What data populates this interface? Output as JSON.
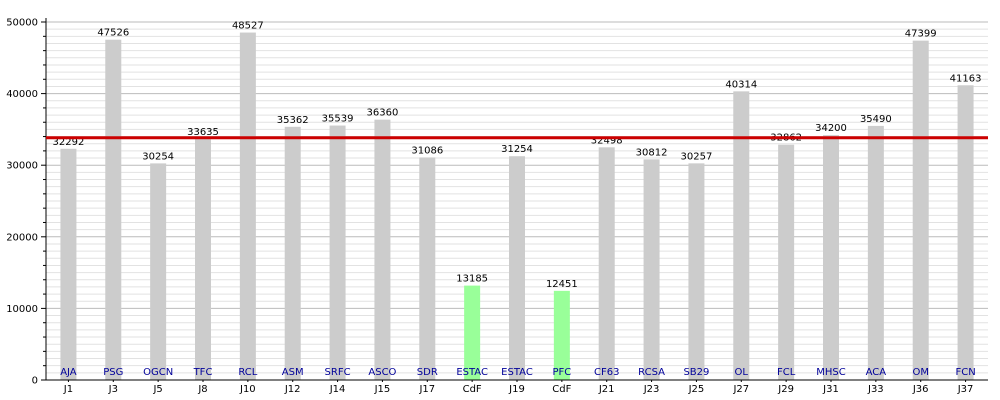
{
  "chart_data": {
    "type": "bar",
    "ylim": [
      0,
      50000
    ],
    "y_ticks": [
      0,
      10000,
      20000,
      30000,
      40000,
      50000
    ],
    "grid": true,
    "reference_line": 33830,
    "bar_color": "#cccccc",
    "highlight_color": "#99ff99",
    "reference_color": "#cc0000",
    "team_label_color": "#000099",
    "bars": [
      {
        "round": "J1",
        "team": "AJA",
        "value": 32292,
        "highlight": false
      },
      {
        "round": "J3",
        "team": "PSG",
        "value": 47526,
        "highlight": false
      },
      {
        "round": "J5",
        "team": "OGCN",
        "value": 30254,
        "highlight": false
      },
      {
        "round": "J8",
        "team": "TFC",
        "value": 33635,
        "highlight": false
      },
      {
        "round": "J10",
        "team": "RCL",
        "value": 48527,
        "highlight": false
      },
      {
        "round": "J12",
        "team": "ASM",
        "value": 35362,
        "highlight": false
      },
      {
        "round": "J14",
        "team": "SRFC",
        "value": 35539,
        "highlight": false
      },
      {
        "round": "J15",
        "team": "ASCO",
        "value": 36360,
        "highlight": false
      },
      {
        "round": "J17",
        "team": "SDR",
        "value": 31086,
        "highlight": false
      },
      {
        "round": "CdF",
        "team": "ESTAC",
        "value": 13185,
        "highlight": true
      },
      {
        "round": "J19",
        "team": "ESTAC",
        "value": 31254,
        "highlight": false
      },
      {
        "round": "CdF",
        "team": "PFC",
        "value": 12451,
        "highlight": true
      },
      {
        "round": "J21",
        "team": "CF63",
        "value": 32498,
        "highlight": false
      },
      {
        "round": "J23",
        "team": "RCSA",
        "value": 30812,
        "highlight": false
      },
      {
        "round": "J25",
        "team": "SB29",
        "value": 30257,
        "highlight": false
      },
      {
        "round": "J27",
        "team": "OL",
        "value": 40314,
        "highlight": false
      },
      {
        "round": "J29",
        "team": "FCL",
        "value": 32862,
        "highlight": false
      },
      {
        "round": "J31",
        "team": "MHSC",
        "value": 34200,
        "highlight": false
      },
      {
        "round": "J33",
        "team": "ACA",
        "value": 35490,
        "highlight": false
      },
      {
        "round": "J36",
        "team": "OM",
        "value": 47399,
        "highlight": false
      },
      {
        "round": "J37",
        "team": "FCN",
        "value": 41163,
        "highlight": false
      }
    ]
  }
}
